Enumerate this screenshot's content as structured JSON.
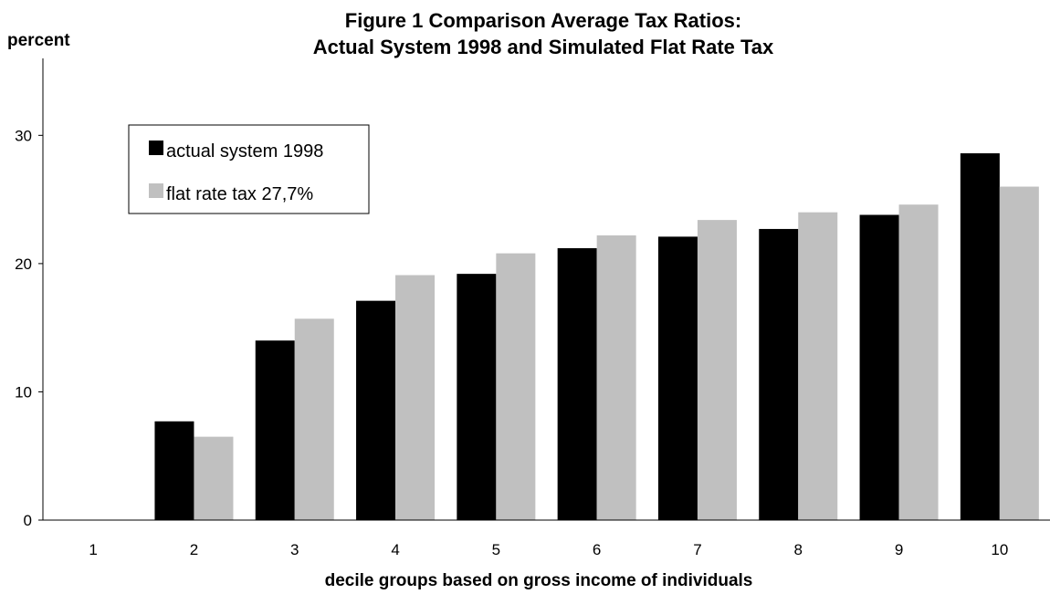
{
  "chart_data": {
    "type": "bar",
    "title_line1": "Figure 1  Comparison Average Tax Ratios:",
    "title_line2": "Actual System 1998 and Simulated Flat Rate Tax",
    "ylabel": "percent",
    "xlabel": "decile groups based on gross income of individuals",
    "categories": [
      "1",
      "2",
      "3",
      "4",
      "5",
      "6",
      "7",
      "8",
      "9",
      "10"
    ],
    "yticks": [
      "0",
      "10",
      "20",
      "30"
    ],
    "ylim": [
      0,
      36
    ],
    "grid": false,
    "legend_position": "top-left",
    "series": [
      {
        "name": "actual system 1998",
        "color": "#000000",
        "values": [
          0,
          7.7,
          14.0,
          17.1,
          19.2,
          21.2,
          22.1,
          22.7,
          23.8,
          28.6
        ]
      },
      {
        "name": "flat rate tax 27,7%",
        "color": "#c0c0c0",
        "values": [
          0,
          6.5,
          15.7,
          19.1,
          20.8,
          22.2,
          23.4,
          24.0,
          24.6,
          26.0
        ]
      }
    ]
  }
}
